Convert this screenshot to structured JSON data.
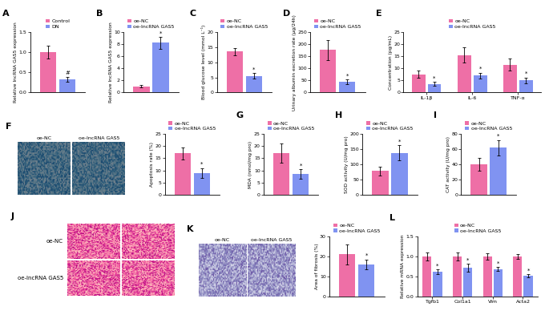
{
  "chart_data": [
    {
      "panel": "A",
      "type": "bar",
      "categories": [
        null
      ],
      "tick_labels": "y",
      "legend": "top",
      "y_label": "Relative lncRNA GAS5 expression",
      "ylim": [
        0,
        1.5
      ],
      "yticks": [
        {
          "value": 0,
          "label": "0.0"
        },
        {
          "value": 0.5,
          "label": "0.5"
        },
        {
          "value": 1.0,
          "label": "1.0"
        },
        {
          "value": 1.5,
          "label": "1.5"
        }
      ],
      "series": [
        {
          "name": "Control",
          "color": "#ee6fa6",
          "values": [
            1.0
          ],
          "errors": [
            0.15
          ],
          "annotations": [
            null
          ]
        },
        {
          "name": "DN",
          "color": "#8093f1",
          "values": [
            0.33
          ],
          "errors": [
            0.06
          ],
          "annotations": [
            "#"
          ]
        }
      ]
    },
    {
      "panel": "B",
      "type": "bar",
      "categories": [
        null
      ],
      "tick_labels": "y",
      "legend": "top",
      "y_label": "Relative lncRNA GAS5 expression",
      "ylim": [
        0,
        10
      ],
      "yticks": [
        0,
        2,
        4,
        6,
        8,
        10
      ],
      "series": [
        {
          "name": "oe-NC",
          "color": "#ee6fa6",
          "values": [
            1.0
          ],
          "errors": [
            0.2
          ],
          "annotations": [
            null
          ]
        },
        {
          "name": "oe-lncRNA GAS5",
          "color": "#8093f1",
          "values": [
            8.2
          ],
          "errors": [
            1.0
          ],
          "annotations": [
            "*"
          ]
        }
      ]
    },
    {
      "panel": "C",
      "type": "bar",
      "categories": [
        null
      ],
      "tick_labels": "y",
      "legend": "top",
      "y_label": "Blood glucose level (mmol L⁻¹)",
      "ylim": [
        0,
        20
      ],
      "yticks": [
        0,
        5,
        10,
        15,
        20
      ],
      "series": [
        {
          "name": "oe-NC",
          "color": "#ee6fa6",
          "values": [
            13.5
          ],
          "errors": [
            1.2
          ],
          "annotations": [
            null
          ]
        },
        {
          "name": "oe-lncRNA GAS5",
          "color": "#8093f1",
          "values": [
            5.5
          ],
          "errors": [
            1.0
          ],
          "annotations": [
            "*"
          ]
        }
      ]
    },
    {
      "panel": "D",
      "type": "bar",
      "categories": [
        null
      ],
      "tick_labels": "y",
      "legend": "top",
      "y_label": "Urinary albumin excretion rate (μg/24h)",
      "ylim": [
        0,
        250
      ],
      "yticks": [
        0,
        50,
        100,
        150,
        200,
        250
      ],
      "series": [
        {
          "name": "oe-NC",
          "color": "#ee6fa6",
          "values": [
            175
          ],
          "errors": [
            40
          ],
          "annotations": [
            null
          ]
        },
        {
          "name": "oe-lncRNA GAS5",
          "color": "#8093f1",
          "values": [
            45
          ],
          "errors": [
            10
          ],
          "annotations": [
            "*"
          ]
        }
      ]
    },
    {
      "panel": "E",
      "type": "bar",
      "categories": [
        "IL-1β",
        "IL-6",
        "TNF-α"
      ],
      "legend": "top",
      "y_label": "Concentration (pg/mL)",
      "ylim": [
        0,
        25
      ],
      "yticks": [
        0,
        5,
        10,
        15,
        20,
        25
      ],
      "series": [
        {
          "name": "oe-NC",
          "color": "#ee6fa6",
          "values": [
            7.5,
            15.5,
            11.5
          ],
          "errors": [
            1.5,
            3.0,
            2.5
          ],
          "annotations": [
            null,
            null,
            null
          ]
        },
        {
          "name": "oe-lncRNA GAS5",
          "color": "#8093f1",
          "values": [
            3.5,
            7.0,
            5.0
          ],
          "errors": [
            0.8,
            1.2,
            1.2
          ],
          "annotations": [
            "*",
            "*",
            "*"
          ]
        }
      ]
    },
    {
      "panel": "F",
      "type": "image",
      "labels": [
        "oe-NC",
        "oe-lncRNA GAS5"
      ]
    },
    {
      "type": "bar",
      "categories": [
        null
      ],
      "tick_labels": "y",
      "legend": "top",
      "y_label": "Apoptosis rate (%)",
      "ylim": [
        0,
        25
      ],
      "yticks": [
        0,
        5,
        10,
        15,
        20,
        25
      ],
      "series": [
        {
          "name": "oe-NC",
          "color": "#ee6fa6",
          "values": [
            17
          ],
          "errors": [
            2.5
          ],
          "annotations": [
            null
          ]
        },
        {
          "name": "oe-lncRNA GAS5",
          "color": "#8093f1",
          "values": [
            9
          ],
          "errors": [
            2.0
          ],
          "annotations": [
            "*"
          ]
        }
      ]
    },
    {
      "panel": "G",
      "type": "bar",
      "categories": [
        null
      ],
      "tick_labels": "y",
      "legend": "top",
      "y_label": "MDA (nmol/mg pro)",
      "ylim": [
        0,
        25
      ],
      "yticks": [
        0,
        5,
        10,
        15,
        20,
        25
      ],
      "series": [
        {
          "name": "oe-NC",
          "color": "#ee6fa6",
          "values": [
            17
          ],
          "errors": [
            4.0
          ],
          "annotations": [
            null
          ]
        },
        {
          "name": "oe-lncRNA GAS5",
          "color": "#8093f1",
          "values": [
            8.5
          ],
          "errors": [
            2.0
          ],
          "annotations": [
            "*"
          ]
        }
      ]
    },
    {
      "panel": "H",
      "type": "bar",
      "categories": [
        null
      ],
      "tick_labels": "y",
      "legend": "top",
      "y_label": "SOD activity (U/mg pro)",
      "ylim": [
        0,
        200
      ],
      "yticks": [
        0,
        50,
        100,
        150,
        200
      ],
      "series": [
        {
          "name": "oe-NC",
          "color": "#ee6fa6",
          "values": [
            78
          ],
          "errors": [
            15
          ],
          "annotations": [
            null
          ]
        },
        {
          "name": "oe-lncRNA GAS5",
          "color": "#8093f1",
          "values": [
            138
          ],
          "errors": [
            25
          ],
          "annotations": [
            "*"
          ]
        }
      ]
    },
    {
      "panel": "I",
      "type": "bar",
      "categories": [
        null
      ],
      "tick_labels": "y",
      "legend": "top",
      "y_label": "CAT activity (U/mg pro)",
      "ylim": [
        0,
        80
      ],
      "yticks": [
        0,
        20,
        40,
        60,
        80
      ],
      "series": [
        {
          "name": "oe-NC",
          "color": "#ee6fa6",
          "values": [
            40
          ],
          "errors": [
            8
          ],
          "annotations": [
            null
          ]
        },
        {
          "name": "oe-lncRNA GAS5",
          "color": "#8093f1",
          "values": [
            62
          ],
          "errors": [
            10
          ],
          "annotations": [
            "*"
          ]
        }
      ]
    },
    {
      "panel": "J",
      "type": "image",
      "labels": [
        "oe-NC",
        "oe-lncRNA GAS5"
      ]
    },
    {
      "panel": "K",
      "type": "image",
      "labels": [
        "oe-NC",
        "oe-lncRNA GAS5"
      ]
    },
    {
      "type": "bar",
      "categories": [
        null
      ],
      "tick_labels": "y",
      "legend": "top",
      "y_label": "Area of fibrosis (%)",
      "ylim": [
        0,
        30
      ],
      "yticks": [
        0,
        10,
        20,
        30
      ],
      "series": [
        {
          "name": "oe-NC",
          "color": "#ee6fa6",
          "values": [
            21
          ],
          "errors": [
            5
          ],
          "annotations": [
            null
          ]
        },
        {
          "name": "oe-lncRNA GAS5",
          "color": "#8093f1",
          "values": [
            16
          ],
          "errors": [
            2.5
          ],
          "annotations": [
            "*"
          ]
        }
      ]
    },
    {
      "panel": "L",
      "type": "bar",
      "categories": [
        "Tgfb1",
        "Col1a1",
        "Vim",
        "Acta2"
      ],
      "legend": "top",
      "y_label": "Relative mRNA expression",
      "ylim": [
        0,
        1.5
      ],
      "yticks": [
        {
          "value": 0,
          "label": "0.0"
        },
        {
          "value": 0.5,
          "label": "0.5"
        },
        {
          "value": 1.0,
          "label": "1.0"
        },
        {
          "value": 1.5,
          "label": "1.5"
        }
      ],
      "series": [
        {
          "name": "oe-NC",
          "color": "#ee6fa6",
          "values": [
            1.0,
            1.0,
            1.0,
            1.0
          ],
          "errors": [
            0.1,
            0.1,
            0.08,
            0.06
          ],
          "annotations": [
            null,
            null,
            null,
            null
          ]
        },
        {
          "name": "oe-lncRNA GAS5",
          "color": "#8093f1",
          "values": [
            0.62,
            0.72,
            0.68,
            0.52
          ],
          "errors": [
            0.06,
            0.1,
            0.05,
            0.04
          ],
          "annotations": [
            "*",
            "*",
            "*",
            "*"
          ]
        }
      ]
    }
  ]
}
